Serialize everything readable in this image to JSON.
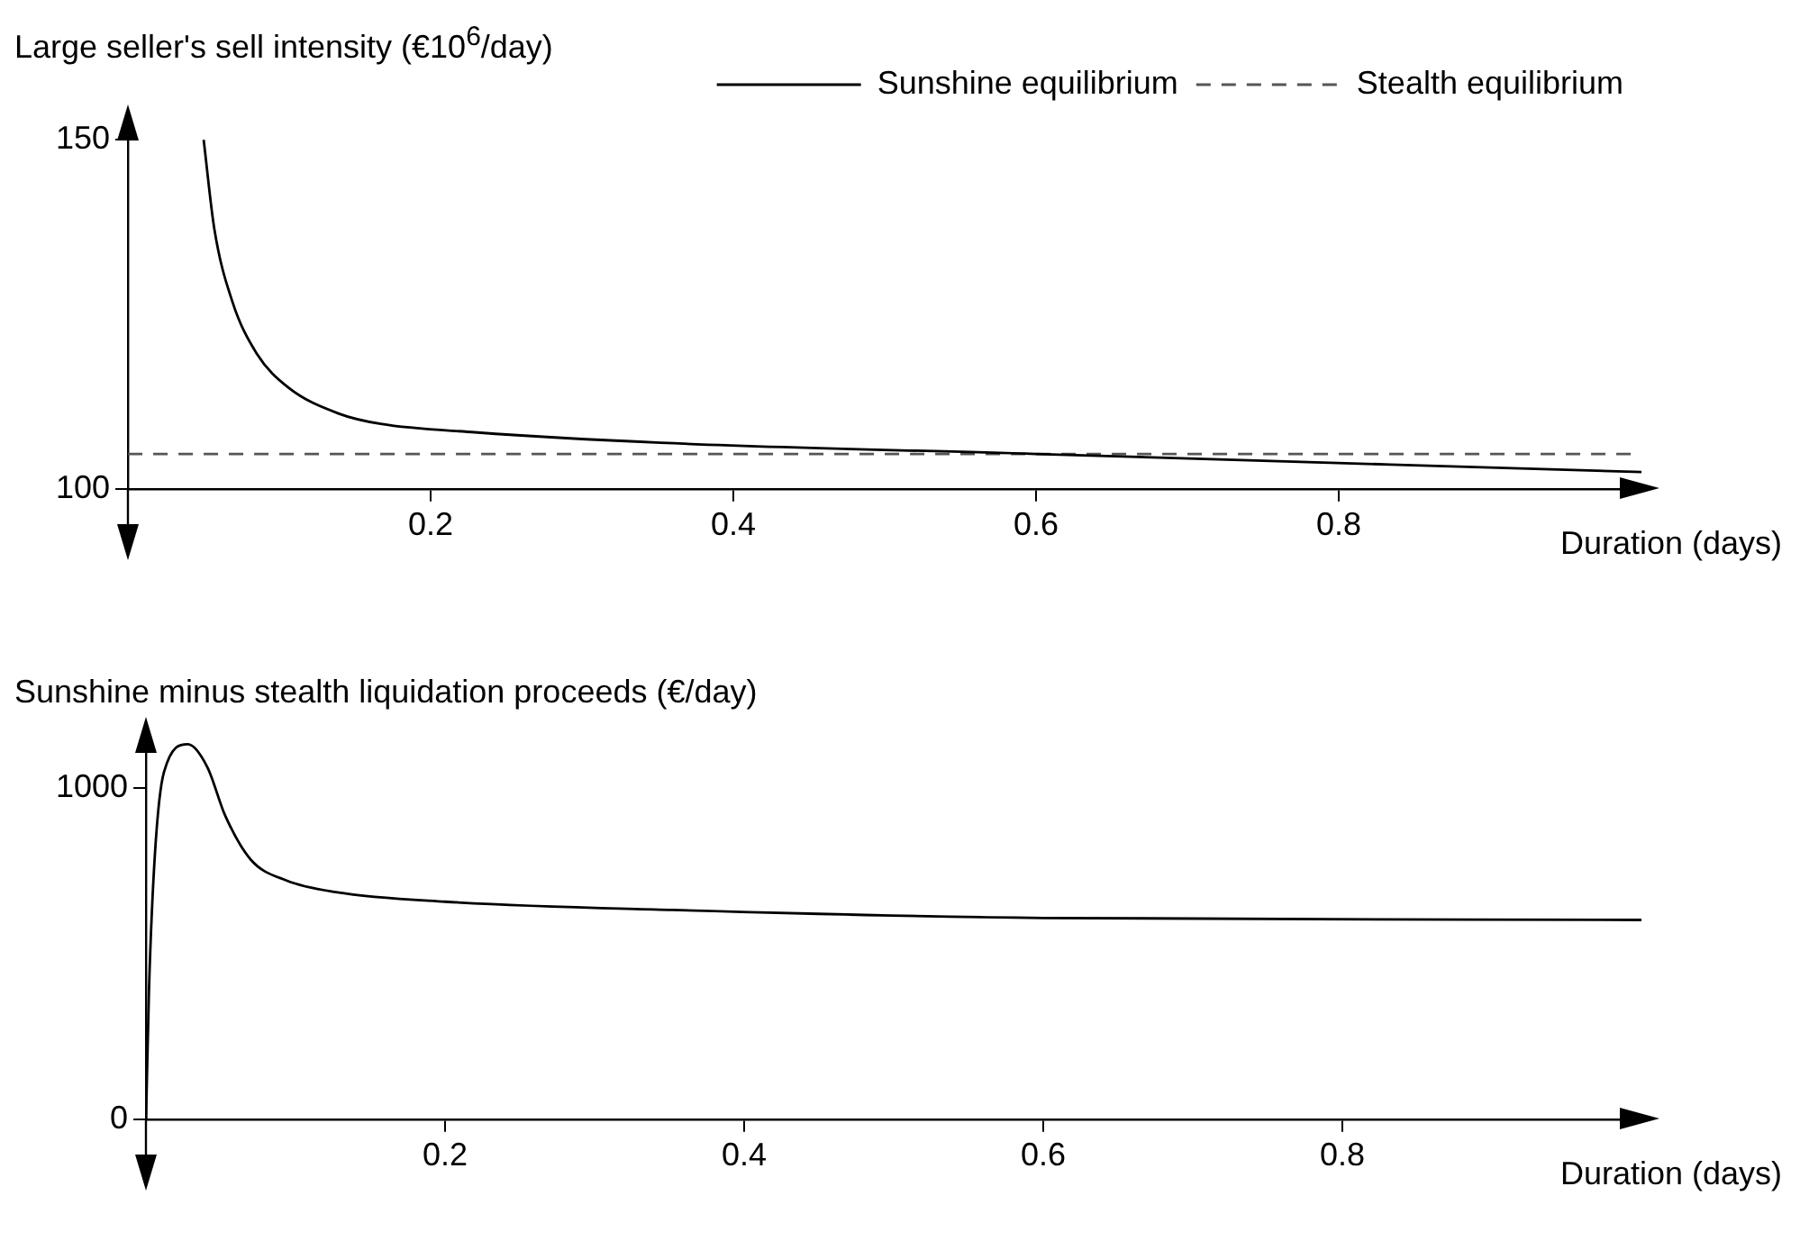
{
  "chart_data": [
    {
      "type": "line",
      "ylabel": "Large seller's sell intensity (€10$^{6}$/day)",
      "xlabel": "Duration (days)",
      "xlim": [
        0,
        1.0
      ],
      "xticks": [
        0.2,
        0.4,
        0.6,
        0.8
      ],
      "ylim": [
        100,
        153
      ],
      "yticks": [
        100,
        150
      ],
      "legend": "top right",
      "marker": "none",
      "series": [
        {
          "name": "Sunshine equilibrium",
          "color": "#000000",
          "line_style": "solid",
          "x": [
            0.05,
            0.057,
            0.069,
            0.085,
            0.106,
            0.139,
            0.167,
            0.229,
            0.352,
            0.6,
            1.0
          ],
          "values": [
            150,
            137.3,
            126.8,
            119.4,
            114.5,
            110.8,
            109.3,
            108.1,
            106.6,
            105.0,
            102.4
          ]
        },
        {
          "name": "Stealth equilibrium",
          "color": "#555555",
          "line_style": "dashed",
          "x": [
            0,
            1.0
          ],
          "values": [
            105.0,
            105.0
          ]
        }
      ]
    },
    {
      "type": "line",
      "ylabel": "Sunshine minus stealth liquidation proceeds (€/day)",
      "xlabel": "Duration (days)",
      "xlim": [
        0,
        1.0
      ],
      "xticks": [
        0.2,
        0.4,
        0.6,
        0.8
      ],
      "ylim": [
        0,
        1170
      ],
      "yticks": [
        0,
        1000
      ],
      "marker": "none",
      "series": [
        {
          "color": "#000000",
          "line_style": "solid",
          "x": [
            0,
            0.002,
            0.006,
            0.012,
            0.028,
            0.041,
            0.053,
            0.07,
            0.094,
            0.127,
            0.2,
            0.352,
            0.6,
            1.0
          ],
          "values": [
            0,
            392,
            803,
            1047,
            1131,
            1062,
            915,
            783,
            720,
            685,
            656,
            631,
            607,
            601
          ]
        }
      ]
    }
  ]
}
